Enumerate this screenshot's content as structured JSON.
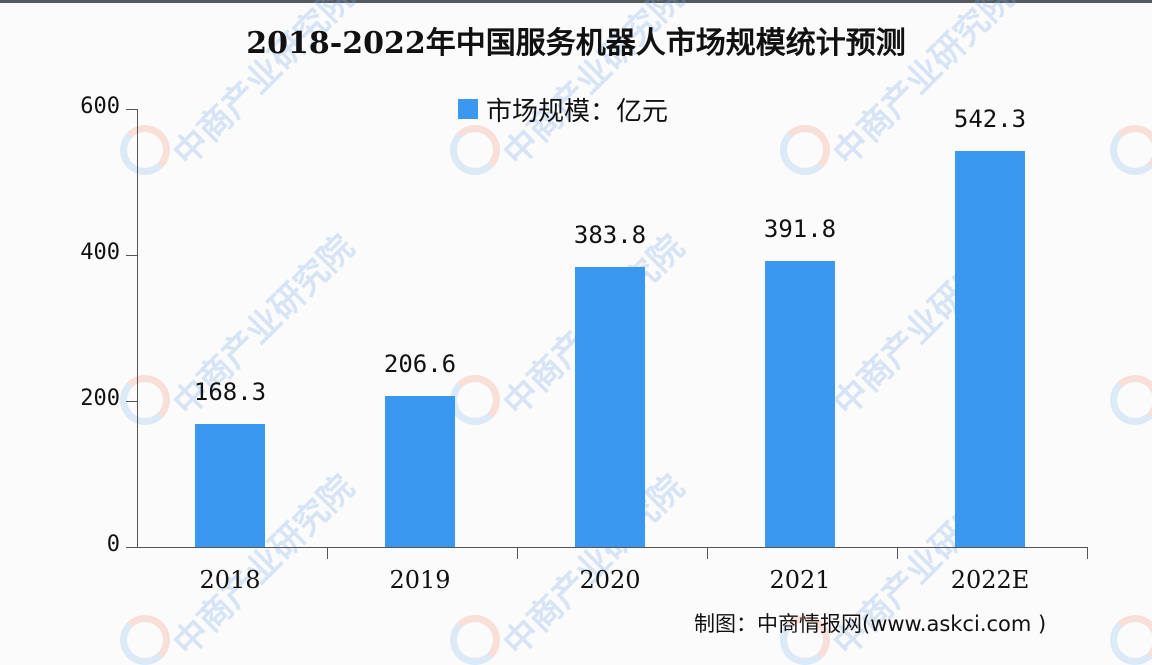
{
  "title": "2018-2022年中国服务机器人市场规模统计预测",
  "legend": {
    "label": "市场规模：亿元",
    "color": "#3a98f0"
  },
  "source": "制图：中商情报网(www.askci.com )",
  "watermark": {
    "text": "中商产业研究院"
  },
  "y_ticks": [
    "0",
    "200",
    "400",
    "600"
  ],
  "chart_data": {
    "type": "bar",
    "title": "2018-2022年中国服务机器人市场规模统计预测",
    "categories": [
      "2018",
      "2019",
      "2020",
      "2021",
      "2022E"
    ],
    "series": [
      {
        "name": "市场规模：亿元",
        "values": [
          168.3,
          206.6,
          383.8,
          391.8,
          542.3
        ],
        "color": "#3a98f0"
      }
    ],
    "value_labels": [
      "168.3",
      "206.6",
      "383.8",
      "391.8",
      "542.3"
    ],
    "xlabel": "",
    "ylabel": "",
    "ylim": [
      0,
      600
    ],
    "yticks": [
      0,
      200,
      400,
      600
    ],
    "grid": false,
    "legend_position": "top-center",
    "annotations": [
      "制图：中商情报网(www.askci.com )"
    ]
  }
}
